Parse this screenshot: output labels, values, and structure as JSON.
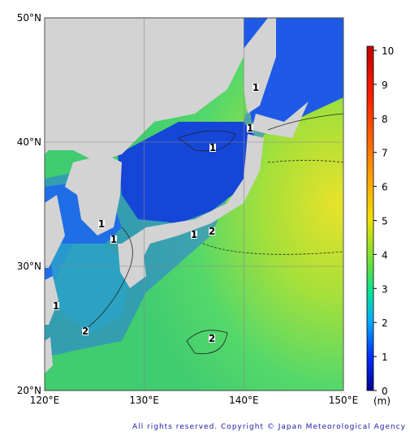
{
  "map": {
    "xlim": [
      120,
      150
    ],
    "ylim": [
      20,
      50
    ],
    "xticks": [
      {
        "value": 120,
        "label": "120°E"
      },
      {
        "value": 130,
        "label": "130°E"
      },
      {
        "value": 140,
        "label": "140°E"
      },
      {
        "value": 150,
        "label": "150°E"
      }
    ],
    "yticks": [
      {
        "value": 20,
        "label": "20°N"
      },
      {
        "value": 30,
        "label": "30°N"
      },
      {
        "value": 40,
        "label": "40°N"
      },
      {
        "value": 50,
        "label": "50°N"
      }
    ],
    "colorbar": {
      "lim": [
        0,
        10
      ],
      "ticks": [
        0,
        1,
        2,
        3,
        4,
        5,
        6,
        7,
        8,
        9,
        10
      ],
      "unit": "(m)"
    },
    "contour_labels": [
      1,
      1,
      1,
      1,
      1,
      1,
      1,
      2,
      2,
      2
    ]
  },
  "footer": "All rights reserved. Copyright © Japan Meteorological Agency"
}
